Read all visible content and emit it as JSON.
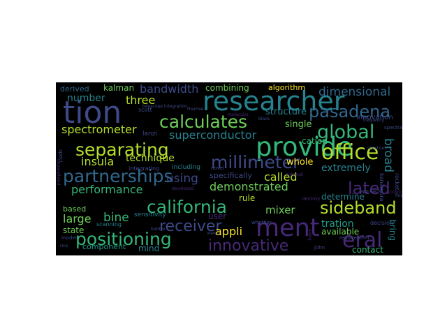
{
  "figure": {
    "background": "#ffffff",
    "cloud_background": "#000000",
    "palette": [
      "#3e4a89",
      "#31688e",
      "#26828e",
      "#1f9e89",
      "#35b779",
      "#6ece58",
      "#b5de2b",
      "#fde725",
      "#482878"
    ]
  },
  "words": [
    {
      "text": "researcher",
      "color": "#26828e"
    },
    {
      "text": "provide",
      "color": "#35b779"
    },
    {
      "text": "tion",
      "color": "#3e4a89"
    },
    {
      "text": "pasadena",
      "color": "#31688e"
    },
    {
      "text": "calculates",
      "color": "#6ece58"
    },
    {
      "text": "separating",
      "color": "#b5de2b"
    },
    {
      "text": "office",
      "color": "#b5de2b"
    },
    {
      "text": "global",
      "color": "#35b779"
    },
    {
      "text": "partnerships",
      "color": "#31688e"
    },
    {
      "text": "millimeter",
      "color": "#3e4a89"
    },
    {
      "text": "california",
      "color": "#35b779"
    },
    {
      "text": "ment",
      "color": "#482878"
    },
    {
      "text": "positioning",
      "color": "#35b779"
    },
    {
      "text": "receiver",
      "color": "#3e4a89"
    },
    {
      "text": "innovative",
      "color": "#482878"
    },
    {
      "text": "sideband",
      "color": "#b5de2b"
    },
    {
      "text": "lated",
      "color": "#482878"
    },
    {
      "text": "eral",
      "color": "#482878"
    },
    {
      "text": "demonstrated",
      "color": "#6ece58"
    },
    {
      "text": "performance",
      "color": "#35b779"
    },
    {
      "text": "superconductor",
      "color": "#26828e"
    },
    {
      "text": "spectrometer",
      "color": "#b5de2b"
    },
    {
      "text": "dimensional",
      "color": "#31688e"
    },
    {
      "text": "bandwidth",
      "color": "#3e4a89"
    },
    {
      "text": "using",
      "color": "#3e4a89"
    },
    {
      "text": "three",
      "color": "#b5de2b"
    },
    {
      "text": "kalman",
      "color": "#6ece58"
    },
    {
      "text": "number",
      "color": "#26828e"
    },
    {
      "text": "technique",
      "color": "#b5de2b"
    },
    {
      "text": "insula",
      "color": "#b5de2b"
    },
    {
      "text": "combining",
      "color": "#6ece58"
    },
    {
      "text": "algorithm",
      "color": "#fde725"
    },
    {
      "text": "structure",
      "color": "#26828e"
    },
    {
      "text": "single",
      "color": "#6ece58"
    },
    {
      "text": "cation",
      "color": "#35b779"
    },
    {
      "text": "whole",
      "color": "#fde725"
    },
    {
      "text": "extremely",
      "color": "#26828e"
    },
    {
      "text": "determine",
      "color": "#26828e"
    },
    {
      "text": "called",
      "color": "#b5de2b"
    },
    {
      "text": "rule",
      "color": "#b5de2b"
    },
    {
      "text": "mixer",
      "color": "#6ece58"
    },
    {
      "text": "tration",
      "color": "#1f9e89"
    },
    {
      "text": "available",
      "color": "#6ece58"
    },
    {
      "text": "appli",
      "color": "#fde725"
    },
    {
      "text": "contact",
      "color": "#35b779"
    },
    {
      "text": "bring",
      "color": "#26828e"
    },
    {
      "text": "large",
      "color": "#6ece58"
    },
    {
      "text": "bine",
      "color": "#35b779"
    },
    {
      "text": "state",
      "color": "#6ece58"
    },
    {
      "text": "mind",
      "color": "#26828e"
    },
    {
      "text": "component",
      "color": "#1f9e89"
    },
    {
      "text": "based",
      "color": "#6ece58"
    },
    {
      "text": "broad",
      "color": "#26828e"
    },
    {
      "text": "innovation",
      "color": "#3e4a89"
    },
    {
      "text": "derived",
      "color": "#31688e"
    },
    {
      "text": "specifically",
      "color": "#3e4a89"
    },
    {
      "text": "user",
      "color": "#482878"
    },
    {
      "text": "including",
      "color": "#26828e"
    },
    {
      "text": "integrating",
      "color": "#3e4a89"
    },
    {
      "text": "sensitivity",
      "color": "#26828e"
    },
    {
      "text": "scanning",
      "color": "#26828e"
    },
    {
      "text": "scott",
      "color": "#3e4a89"
    },
    {
      "text": "lanzi",
      "color": "#3e4a89"
    },
    {
      "text": "novel",
      "color": "#3e4a89"
    },
    {
      "text": "whether",
      "color": "#3e4a89"
    },
    {
      "text": "destroy",
      "color": "#482878"
    },
    {
      "text": "decision",
      "color": "#3e4a89"
    },
    {
      "text": "requirement",
      "color": "#3e4a89"
    },
    {
      "text": "rocket",
      "color": "#3e4a89"
    },
    {
      "text": "kanamura",
      "color": "#3e4a89"
    },
    {
      "text": "concentra",
      "color": "#482878"
    },
    {
      "text": "view",
      "color": "#3e4a89"
    },
    {
      "text": "model",
      "color": "#3e4a89"
    },
    {
      "text": "john",
      "color": "#3e4a89"
    },
    {
      "text": "spectral",
      "color": "#3e4a89"
    },
    {
      "text": "developed",
      "color": "#482878"
    },
    {
      "text": "telescope integration",
      "color": "#3e4a89"
    },
    {
      "text": "bubble",
      "color": "#3e4a89"
    },
    {
      "text": "frequency",
      "color": "#3e4a89"
    },
    {
      "text": "rice",
      "color": "#3e4a89"
    },
    {
      "text": "unparalleled",
      "color": "#482878"
    },
    {
      "text": "spectrum",
      "color": "#3e4a89"
    },
    {
      "text": "along",
      "color": "#482878"
    },
    {
      "text": "speci",
      "color": "#3e4a89"
    },
    {
      "text": "thermal",
      "color": "#3e4a89"
    },
    {
      "text": "molecular",
      "color": "#482878"
    },
    {
      "text": "approach",
      "color": "#3e4a89"
    },
    {
      "text": "flow",
      "color": "#3e4a89"
    },
    {
      "text": "black",
      "color": "#3e4a89"
    },
    {
      "text": "sidewall",
      "color": "#482878"
    }
  ]
}
